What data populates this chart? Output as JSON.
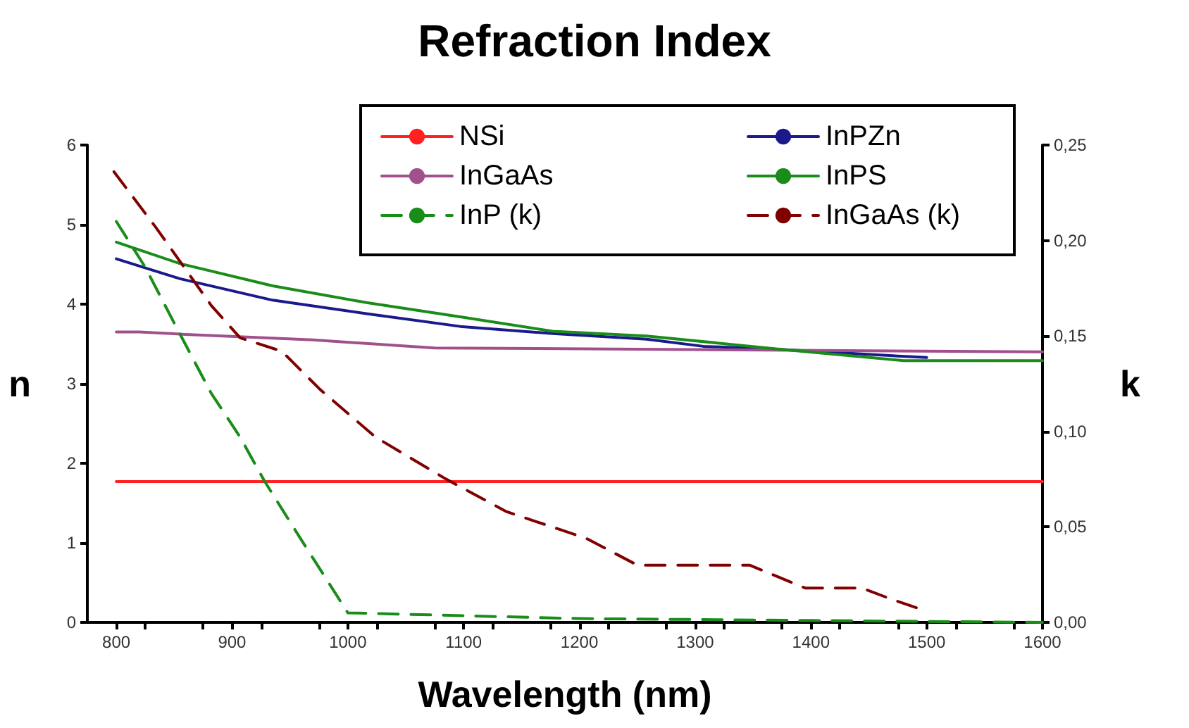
{
  "chart_data": {
    "type": "line",
    "title": "Refraction Index",
    "xlabel": "Wavelength (nm)",
    "ylabel": "n",
    "y2label": "k",
    "xlim": [
      775,
      1600
    ],
    "xticks": [
      {
        "value": 800,
        "label": "800"
      },
      {
        "value": 825,
        "label": null
      },
      {
        "value": 875,
        "label": null
      },
      {
        "value": 900,
        "label": "900"
      },
      {
        "value": 925,
        "label": null
      },
      {
        "value": 975,
        "label": null
      },
      {
        "value": 1000,
        "label": "1000"
      },
      {
        "value": 1025,
        "label": null
      },
      {
        "value": 1075,
        "label": null
      },
      {
        "value": 1100,
        "label": "1100"
      },
      {
        "value": 1125,
        "label": null
      },
      {
        "value": 1175,
        "label": null
      },
      {
        "value": 1200,
        "label": "1200"
      },
      {
        "value": 1225,
        "label": null
      },
      {
        "value": 1275,
        "label": null
      },
      {
        "value": 1300,
        "label": "1300"
      },
      {
        "value": 1325,
        "label": null
      },
      {
        "value": 1375,
        "label": null
      },
      {
        "value": 1400,
        "label": "1400"
      },
      {
        "value": 1425,
        "label": null
      },
      {
        "value": 1475,
        "label": null
      },
      {
        "value": 1500,
        "label": "1500"
      },
      {
        "value": 1525,
        "label": null
      },
      {
        "value": 1575,
        "label": null
      },
      {
        "value": 1600,
        "label": "1600"
      }
    ],
    "ylim": [
      0,
      6
    ],
    "yticks": [
      0,
      1,
      2,
      3,
      4,
      5,
      6
    ],
    "y2lim": [
      0,
      0.25
    ],
    "y2ticks": [
      {
        "value": 0,
        "label": "0,00"
      },
      {
        "value": 0.05,
        "label": "0,05"
      },
      {
        "value": 0.1,
        "label": "0,10"
      },
      {
        "value": 0.15,
        "label": "0,15"
      },
      {
        "value": 0.2,
        "label": "0,20"
      },
      {
        "value": 0.25,
        "label": "0,25"
      }
    ],
    "legend": "top",
    "grid": false,
    "marker": "none",
    "series": [
      {
        "name": "NSi",
        "color": "#ff2020",
        "line_style": "solid",
        "x": [
          800,
          1600
        ],
        "values": [
          1.77,
          1.77
        ]
      },
      {
        "name": "InPZn",
        "color": "#1a1a8c",
        "line_style": "solid",
        "x": [
          800,
          855,
          935,
          1016,
          1097,
          1177,
          1258,
          1307,
          1376,
          1485,
          1500
        ],
        "values": [
          4.57,
          4.32,
          4.05,
          3.88,
          3.72,
          3.63,
          3.56,
          3.47,
          3.43,
          3.34,
          3.33
        ]
      },
      {
        "name": "InGaAs",
        "color": "#a0508c",
        "line_style": "solid",
        "x": [
          800,
          820,
          860,
          970,
          1075,
          1600
        ],
        "values": [
          3.65,
          3.65,
          3.62,
          3.55,
          3.45,
          3.4
        ]
      },
      {
        "name": "InPS",
        "color": "#1a8c1a",
        "line_style": "solid",
        "x": [
          800,
          855,
          935,
          1016,
          1097,
          1177,
          1258,
          1376,
          1480,
          1600
        ],
        "values": [
          4.78,
          4.51,
          4.23,
          4.02,
          3.84,
          3.66,
          3.6,
          3.43,
          3.29,
          3.29
        ]
      },
      {
        "name": "InP (k)",
        "color": "#1a8c1a",
        "line_style": "dashed",
        "axis": "y2",
        "x": [
          800,
          825,
          855,
          882,
          907,
          928,
          959,
          979,
          1000,
          1200,
          1400,
          1600
        ],
        "values": [
          0.21,
          0.186,
          0.151,
          0.12,
          0.097,
          0.074,
          0.044,
          0.025,
          0.005,
          0.002,
          0.001,
          0
        ]
      },
      {
        "name": "InGaAs (k)",
        "color": "#800000",
        "line_style": "dashed",
        "axis": "y2",
        "x": [
          798,
          834,
          882,
          907,
          943,
          976,
          1024,
          1085,
          1137,
          1206,
          1250,
          1347,
          1367,
          1395,
          1444,
          1468,
          1492
        ],
        "values": [
          0.236,
          0.207,
          0.166,
          0.149,
          0.142,
          0.122,
          0.097,
          0.075,
          0.058,
          0.044,
          0.03,
          0.03,
          0.025,
          0.018,
          0.018,
          0.0125,
          0.0075
        ]
      }
    ]
  }
}
